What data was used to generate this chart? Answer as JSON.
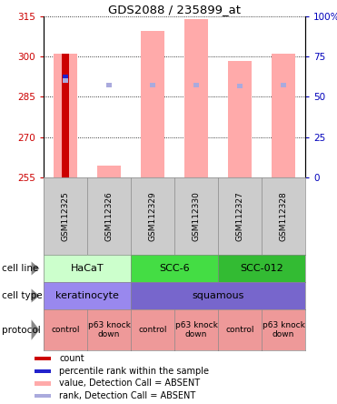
{
  "title": "GDS2088 / 235899_at",
  "samples": [
    "GSM112325",
    "GSM112326",
    "GSM112329",
    "GSM112330",
    "GSM112327",
    "GSM112328"
  ],
  "ylim": [
    255,
    315
  ],
  "yticks_left": [
    255,
    270,
    285,
    300,
    315
  ],
  "pink_bars": {
    "values": [
      301.0,
      259.5,
      309.5,
      314.0,
      298.5,
      301.0
    ],
    "color": "#ffaaaa"
  },
  "red_bar": {
    "index": 0,
    "value": 301.0,
    "color": "#cc0000"
  },
  "blue_square": {
    "index": 0,
    "value": 292.5,
    "color": "#2222cc"
  },
  "light_blue_squares": {
    "values": [
      291.0,
      289.5,
      289.5,
      289.5,
      289.0,
      289.5
    ],
    "color": "#aaaadd"
  },
  "cell_line_data": [
    {
      "label": "HaCaT",
      "start": 0,
      "end": 2,
      "color": "#ccffcc"
    },
    {
      "label": "SCC-6",
      "start": 2,
      "end": 4,
      "color": "#44dd44"
    },
    {
      "label": "SCC-012",
      "start": 4,
      "end": 6,
      "color": "#33bb33"
    }
  ],
  "cell_type_data": [
    {
      "label": "keratinocyte",
      "start": 0,
      "end": 2,
      "color": "#9988ee"
    },
    {
      "label": "squamous",
      "start": 2,
      "end": 6,
      "color": "#7766cc"
    }
  ],
  "protocol_data": [
    {
      "label": "control",
      "start": 0,
      "end": 1,
      "color": "#ee9999"
    },
    {
      "label": "p63 knock\ndown",
      "start": 1,
      "end": 2,
      "color": "#ee9999"
    },
    {
      "label": "control",
      "start": 2,
      "end": 3,
      "color": "#ee9999"
    },
    {
      "label": "p63 knock\ndown",
      "start": 3,
      "end": 4,
      "color": "#ee9999"
    },
    {
      "label": "control",
      "start": 4,
      "end": 5,
      "color": "#ee9999"
    },
    {
      "label": "p63 knock\ndown",
      "start": 5,
      "end": 6,
      "color": "#ee9999"
    }
  ],
  "row_labels": [
    "cell line",
    "cell type",
    "protocol"
  ],
  "legend_items": [
    {
      "color": "#cc0000",
      "label": "count"
    },
    {
      "color": "#2222cc",
      "label": "percentile rank within the sample"
    },
    {
      "color": "#ffaaaa",
      "label": "value, Detection Call = ABSENT"
    },
    {
      "color": "#aaaadd",
      "label": "rank, Detection Call = ABSENT"
    }
  ],
  "left_tick_color": "#cc0000",
  "right_tick_color": "#0000bb",
  "sample_bg": "#cccccc",
  "chart_bg": "#ffffff"
}
